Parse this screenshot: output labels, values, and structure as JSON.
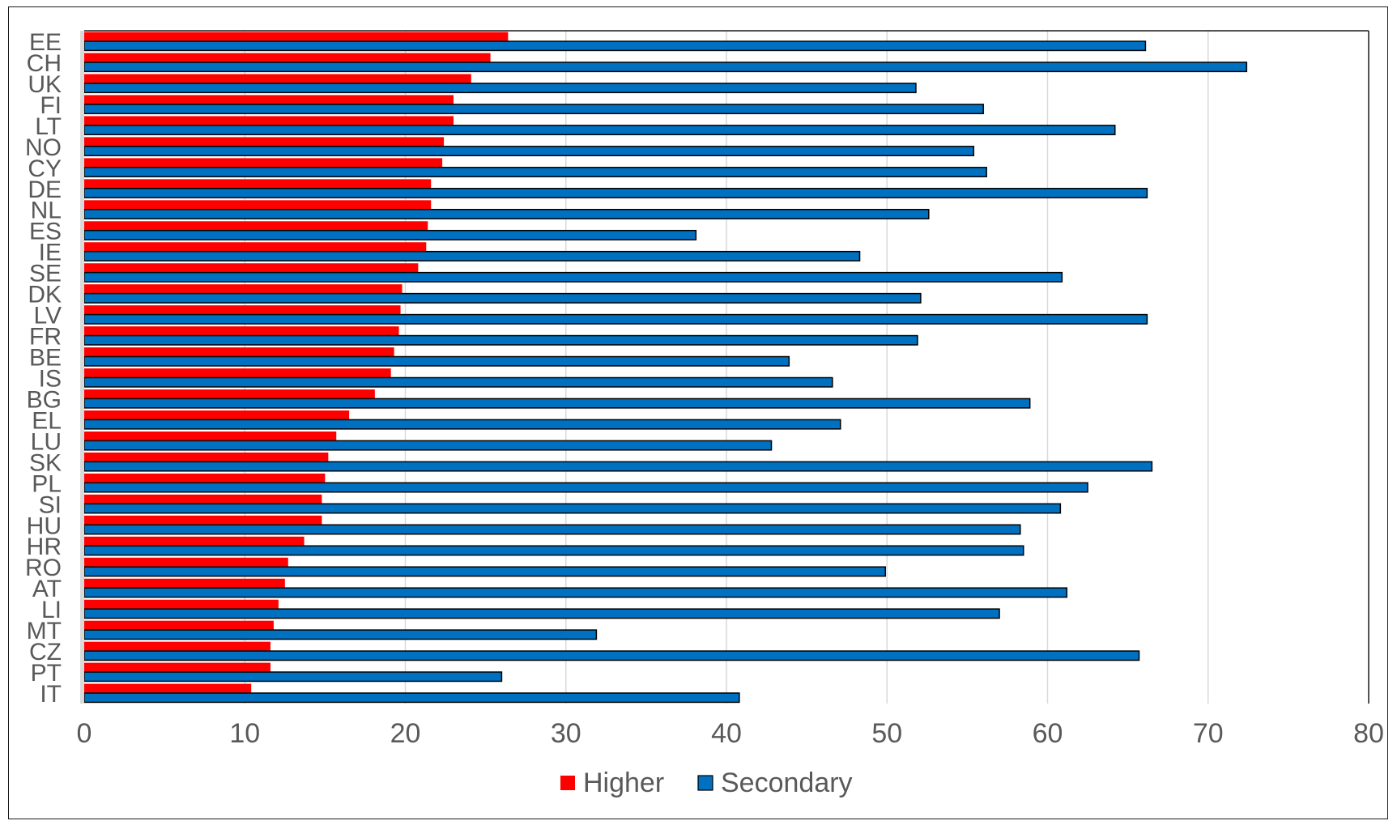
{
  "chart_data": {
    "type": "bar",
    "orientation": "horizontal",
    "categories": [
      "EE",
      "CH",
      "UK",
      "FI",
      "LT",
      "NO",
      "CY",
      "DE",
      "NL",
      "ES",
      "IE",
      "SE",
      "DK",
      "LV",
      "FR",
      "BE",
      "IS",
      "BG",
      "EL",
      "LU",
      "SK",
      "PL",
      "SI",
      "HU",
      "HR",
      "RO",
      "AT",
      "LI",
      "MT",
      "CZ",
      "PT",
      "IT"
    ],
    "series": [
      {
        "name": "Higher",
        "color": "#ff0000",
        "values": [
          26.4,
          25.3,
          24.1,
          23.0,
          23.0,
          22.4,
          22.3,
          21.6,
          21.6,
          21.4,
          21.3,
          20.8,
          19.8,
          19.7,
          19.6,
          19.3,
          19.1,
          18.1,
          16.5,
          15.7,
          15.2,
          15.0,
          14.8,
          14.8,
          13.7,
          12.7,
          12.5,
          12.1,
          11.8,
          11.6,
          11.6,
          10.4
        ]
      },
      {
        "name": "Secondary",
        "color": "#0070c0",
        "values": [
          66.1,
          72.4,
          51.8,
          56.0,
          64.2,
          55.4,
          56.2,
          66.2,
          52.6,
          38.1,
          48.3,
          60.9,
          52.1,
          66.2,
          51.9,
          43.9,
          46.6,
          58.9,
          47.1,
          42.8,
          66.5,
          62.5,
          60.8,
          58.3,
          58.5,
          49.9,
          61.2,
          57.0,
          31.9,
          65.7,
          26.0,
          40.8
        ]
      }
    ],
    "xlim": [
      0,
      80
    ],
    "x_ticks": [
      "0",
      "10",
      "20",
      "30",
      "40",
      "50",
      "60",
      "70",
      "80"
    ],
    "grid": true,
    "legend_position": "bottom-center",
    "title": "",
    "xlabel": "",
    "ylabel": ""
  }
}
